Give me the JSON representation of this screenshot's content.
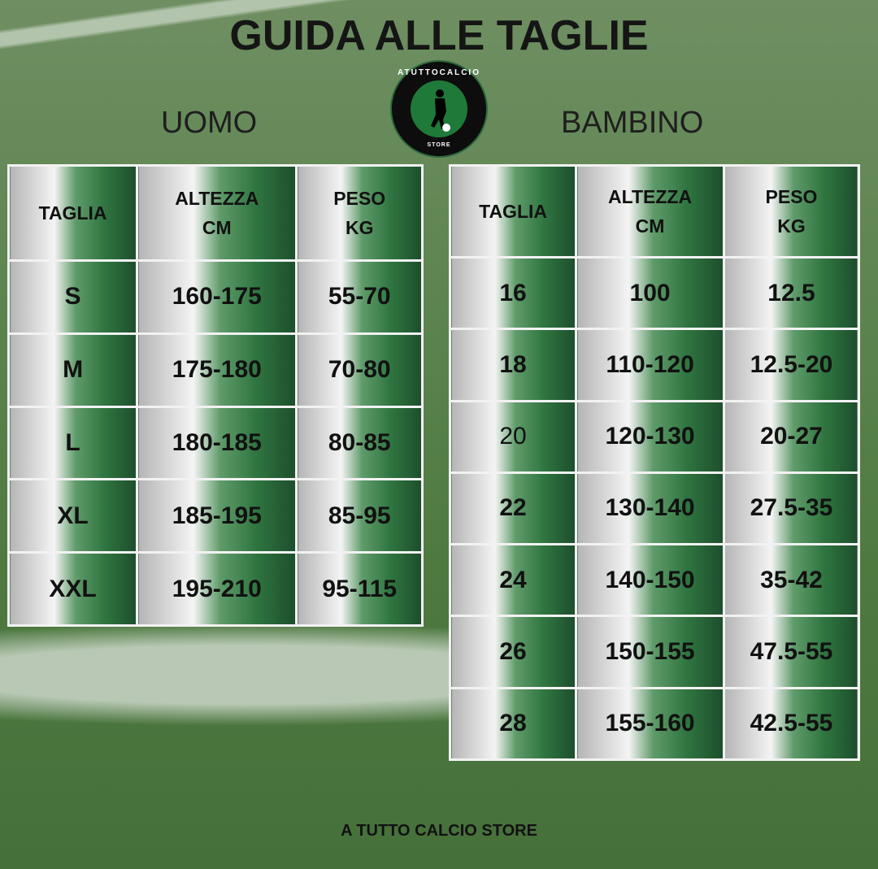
{
  "title": "GUIDA ALLE TAGLIE",
  "logo": {
    "text_top": "ATUTTOCALCIO",
    "text_bottom": "STORE",
    "icon": "soccer-player-icon"
  },
  "uomo": {
    "label": "UOMO",
    "headers": [
      "TAGLIA",
      "ALTEZZA\nCM",
      "PESO\nKG"
    ],
    "rows": [
      [
        "S",
        "160-175",
        "55-70"
      ],
      [
        "M",
        "175-180",
        "70-80"
      ],
      [
        "L",
        "180-185",
        "80-85"
      ],
      [
        "XL",
        "185-195",
        "85-95"
      ],
      [
        "XXL",
        "195-210",
        "95-115"
      ]
    ]
  },
  "bambino": {
    "label": "BAMBINO",
    "headers": [
      "TAGLIA",
      "ALTEZZA\nCM",
      "PESO\nKG"
    ],
    "rows": [
      [
        "16",
        "100",
        "12.5"
      ],
      [
        "18",
        "110-120",
        "12.5-20"
      ],
      [
        "20",
        "120-130",
        "20-27"
      ],
      [
        "22",
        "130-140",
        "27.5-35"
      ],
      [
        "24",
        "140-150",
        "35-42"
      ],
      [
        "26",
        "150-155",
        "47.5-55"
      ],
      [
        "28",
        "155-160",
        "42.5-55"
      ]
    ]
  },
  "footer": "A TUTTO CALCIO STORE",
  "colors": {
    "green_dark": "#1d4e2c",
    "green": "#2f7540",
    "gray": "#b5b5b5"
  }
}
